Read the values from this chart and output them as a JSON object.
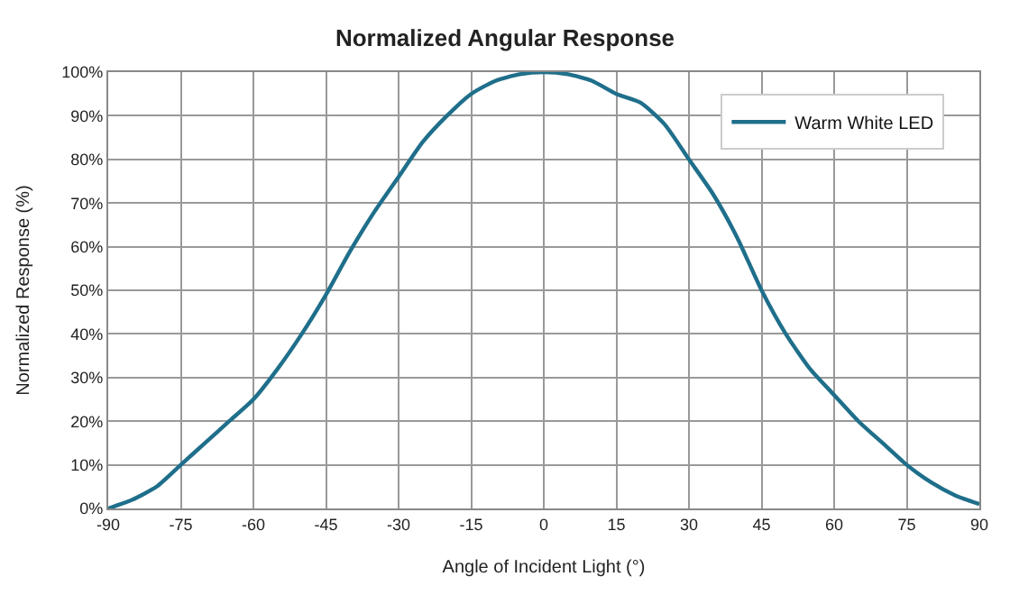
{
  "chart_data": {
    "type": "line",
    "title": "Normalized Angular Response",
    "xlabel": "Angle of Incident Light (°)",
    "ylabel": "Normalized Response (%)",
    "x": [
      -90,
      -85,
      -80,
      -75,
      -70,
      -65,
      -60,
      -55,
      -50,
      -45,
      -40,
      -35,
      -30,
      -25,
      -20,
      -15,
      -10,
      -5,
      0,
      5,
      10,
      15,
      20,
      25,
      30,
      35,
      40,
      45,
      50,
      55,
      60,
      65,
      70,
      75,
      80,
      85,
      90
    ],
    "series": [
      {
        "name": "Warm White LED",
        "color": "#1f6f8b",
        "values": [
          0,
          2,
          5,
          10,
          15,
          20,
          25,
          32,
          40,
          49,
          59,
          68,
          76,
          84,
          90,
          95,
          98,
          99.5,
          100,
          99.5,
          98,
          95,
          93,
          88,
          80,
          72,
          62,
          50,
          40,
          32,
          26,
          20,
          15,
          10,
          6,
          3,
          1
        ]
      }
    ],
    "xlim": [
      -90,
      90
    ],
    "xticks": [
      -90,
      -75,
      -60,
      -45,
      -30,
      -15,
      0,
      15,
      30,
      45,
      60,
      75,
      90
    ],
    "ylim": [
      0,
      100
    ],
    "yticks": [
      {
        "value": 0,
        "label": "0%"
      },
      {
        "value": 10,
        "label": "10%"
      },
      {
        "value": 20,
        "label": "20%"
      },
      {
        "value": 30,
        "label": "30%"
      },
      {
        "value": 40,
        "label": "40%"
      },
      {
        "value": 50,
        "label": "50%"
      },
      {
        "value": 60,
        "label": "60%"
      },
      {
        "value": 70,
        "label": "70%"
      },
      {
        "value": 80,
        "label": "80%"
      },
      {
        "value": 90,
        "label": "90%"
      },
      {
        "value": 100,
        "label": "100%"
      }
    ],
    "grid": true,
    "legend": "top right",
    "marker": "none",
    "line_style": "solid"
  }
}
